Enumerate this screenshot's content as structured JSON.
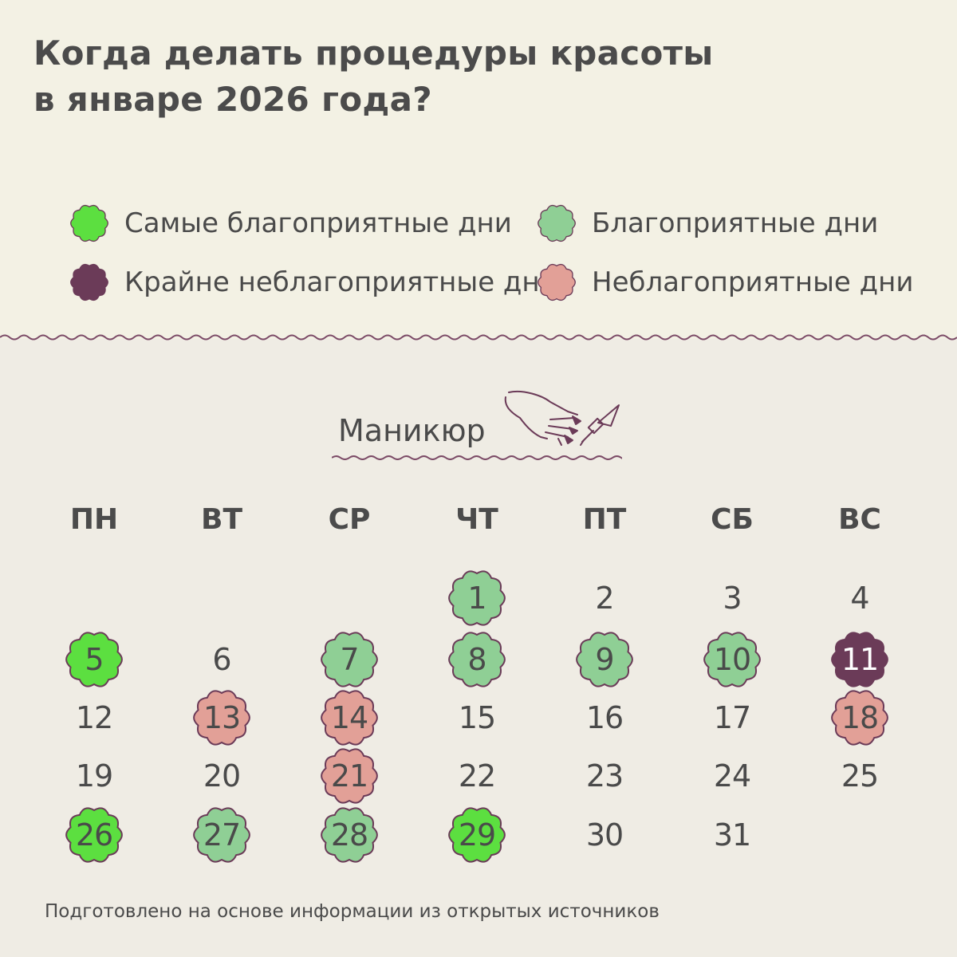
{
  "title": {
    "line1": "Когда делать процедуры красоты",
    "line2": "в январе 2026 года?"
  },
  "legend": [
    {
      "key": "best",
      "label": "Самые благоприятные дни",
      "color": "#5cdf40"
    },
    {
      "key": "good",
      "label": "Благоприятные дни",
      "color": "#8fcf95"
    },
    {
      "key": "very-bad",
      "label": "Крайне неблагоприятные дни",
      "color": "#6b3b58"
    },
    {
      "key": "bad",
      "label": "Неблагоприятные дни",
      "color": "#e2a097"
    }
  ],
  "section": {
    "title": "Маникюр",
    "icon": "hand-nail-polish-icon"
  },
  "weekdays": [
    "ПН",
    "ВТ",
    "СР",
    "ЧТ",
    "ПТ",
    "СБ",
    "ВС"
  ],
  "calendar": {
    "first_weekday": "ЧТ",
    "weeks": [
      [
        null,
        null,
        null,
        {
          "n": "1",
          "k": "good"
        },
        {
          "n": "2",
          "k": "none"
        },
        {
          "n": "3",
          "k": "none"
        },
        {
          "n": "4",
          "k": "none"
        }
      ],
      [
        {
          "n": "5",
          "k": "best"
        },
        {
          "n": "6",
          "k": "none"
        },
        {
          "n": "7",
          "k": "good"
        },
        {
          "n": "8",
          "k": "good"
        },
        {
          "n": "9",
          "k": "good"
        },
        {
          "n": "10",
          "k": "good"
        },
        {
          "n": "11",
          "k": "very-bad"
        }
      ],
      [
        {
          "n": "12",
          "k": "none"
        },
        {
          "n": "13",
          "k": "bad"
        },
        {
          "n": "14",
          "k": "bad"
        },
        {
          "n": "15",
          "k": "none"
        },
        {
          "n": "16",
          "k": "none"
        },
        {
          "n": "17",
          "k": "none"
        },
        {
          "n": "18",
          "k": "bad"
        }
      ],
      [
        {
          "n": "19",
          "k": "none"
        },
        {
          "n": "20",
          "k": "none"
        },
        {
          "n": "21",
          "k": "bad"
        },
        {
          "n": "22",
          "k": "none"
        },
        {
          "n": "23",
          "k": "none"
        },
        {
          "n": "24",
          "k": "none"
        },
        {
          "n": "25",
          "k": "none"
        }
      ],
      [
        {
          "n": "26",
          "k": "best"
        },
        {
          "n": "27",
          "k": "good"
        },
        {
          "n": "28",
          "k": "good"
        },
        {
          "n": "29",
          "k": "best"
        },
        {
          "n": "30",
          "k": "none"
        },
        {
          "n": "31",
          "k": "none"
        },
        null
      ]
    ]
  },
  "colors": {
    "best": "#5cdf40",
    "good": "#8fcf95",
    "very-bad": "#6b3b58",
    "bad": "#e2a097",
    "outline": "#6b3b58",
    "top_background": "#f3f1e4",
    "bottom_background": "#efece4"
  },
  "footnote": "Подготовлено на основе информации из открытых источников"
}
